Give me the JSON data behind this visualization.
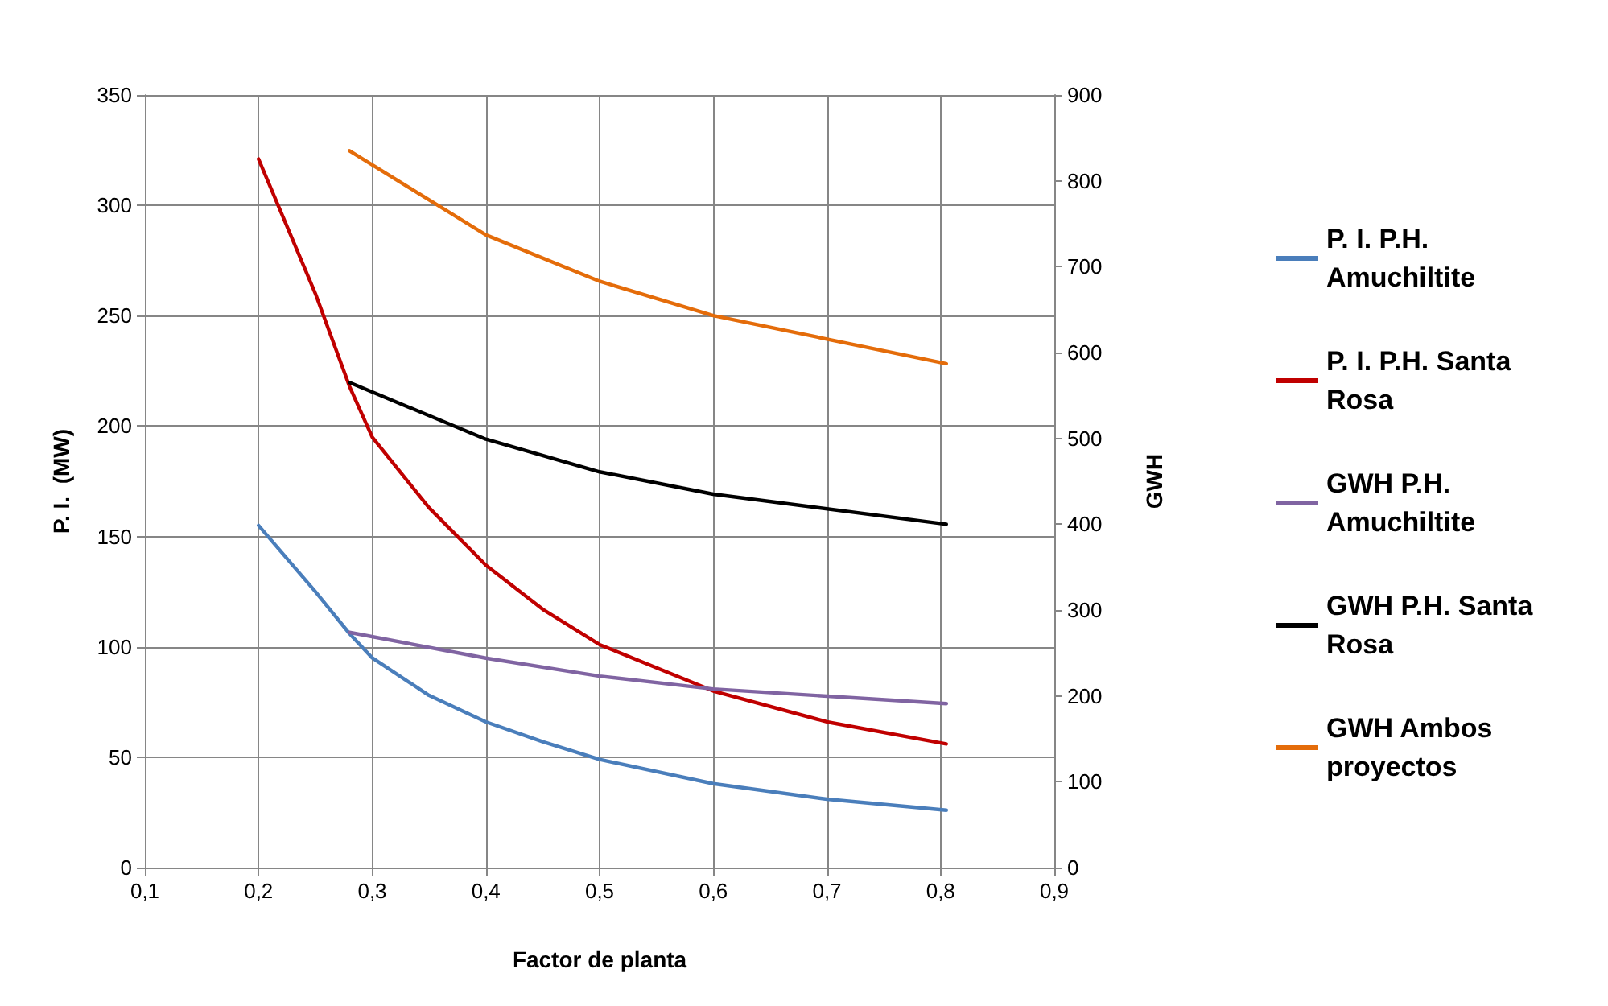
{
  "chart_data": {
    "type": "line",
    "xlabel": "Factor de planta",
    "ylabel": "P. I.  (MW)",
    "y2label": "GWH",
    "xlim": [
      0.1,
      0.9
    ],
    "xticks": [
      {
        "value": 0.1,
        "label": "0,1"
      },
      {
        "value": 0.2,
        "label": "0,2"
      },
      {
        "value": 0.3,
        "label": "0,3"
      },
      {
        "value": 0.4,
        "label": "0,4"
      },
      {
        "value": 0.5,
        "label": "0,5"
      },
      {
        "value": 0.6,
        "label": "0,6"
      },
      {
        "value": 0.7,
        "label": "0,7"
      },
      {
        "value": 0.8,
        "label": "0,8"
      },
      {
        "value": 0.9,
        "label": "0,9"
      }
    ],
    "ylim": [
      0,
      350
    ],
    "yticks": [
      0,
      50,
      100,
      150,
      200,
      250,
      300,
      350
    ],
    "y2lim": [
      0,
      900
    ],
    "y2ticks": [
      0,
      100,
      200,
      300,
      400,
      500,
      600,
      700,
      800,
      900
    ],
    "grid": true,
    "legend": "right",
    "marker": "none",
    "line_style": "solid",
    "series": [
      {
        "name": "P. I. P.H. Amuchiltite",
        "color": "#4a7ebb",
        "x": [
          0.2,
          0.25,
          0.28,
          0.3,
          0.35,
          0.4,
          0.45,
          0.5,
          0.6,
          0.7,
          0.805
        ],
        "values": [
          155,
          125,
          106,
          95,
          78,
          66,
          57,
          49,
          38,
          31,
          26
        ]
      },
      {
        "name": "P. I. P.H. Santa Rosa",
        "color": "#c00000",
        "x": [
          0.2,
          0.25,
          0.28,
          0.3,
          0.35,
          0.4,
          0.45,
          0.5,
          0.6,
          0.7,
          0.805
        ],
        "values": [
          321,
          260,
          218,
          195,
          163,
          137,
          117,
          101,
          80,
          66,
          56
        ]
      },
      {
        "name": "GWH P.H. Amuchiltite",
        "color": "#8064a2",
        "axis": "y2",
        "x": [
          0.28,
          0.4,
          0.5,
          0.6,
          0.805
        ],
        "values": [
          274,
          244,
          223,
          208,
          191
        ]
      },
      {
        "name": "GWH P.H. Santa Rosa",
        "color": "#000000",
        "axis": "y2",
        "x": [
          0.28,
          0.4,
          0.5,
          0.6,
          0.805
        ],
        "values": [
          565,
          499,
          461,
          435,
          400
        ]
      },
      {
        "name": "GWH Ambos proyectos",
        "color": "#e46c0a",
        "axis": "y2",
        "x": [
          0.28,
          0.4,
          0.5,
          0.6,
          0.805
        ],
        "values": [
          835,
          737,
          683,
          643,
          587
        ]
      }
    ]
  }
}
